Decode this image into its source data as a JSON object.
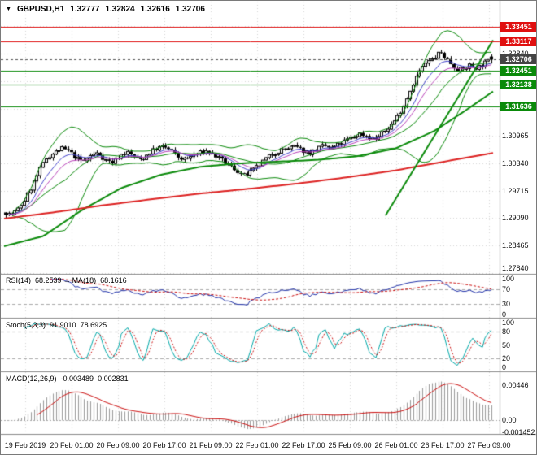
{
  "header": {
    "dropdown_icon": "▼",
    "symbol": "GBPUSD,H1",
    "open": "1.32777",
    "high": "1.32824",
    "low": "1.32616",
    "close": "1.32706"
  },
  "colors": {
    "background": "#ffffff",
    "grid": "#d6d6d6",
    "panel_border": "#8a8a8a",
    "candle_outline": "#000000",
    "candle_up_fill": "#ffffff",
    "candle_down_fill": "#000000",
    "bollinger": "#0a8a0a",
    "ema_fast": "#4444cc",
    "ema_medium": "#bb44bb",
    "slow_ma_green": "#0a8a0a",
    "slow_ma_red": "#dd2222",
    "trendline": "#0a8a0a",
    "resistance": "#e01010",
    "support": "#0a8a0a",
    "current_price_line": "#555555",
    "current_price_box": "#444444",
    "indicator_level": "#aaaaaa",
    "rsi_line": "#2233aa",
    "rsi_ma": "#cc1111",
    "stoch_main": "#00a8a8",
    "stoch_signal": "#cc1111",
    "macd_histogram": "#9a9a9a",
    "macd_signal": "#cc1111"
  },
  "chart_data": {
    "type": "candlestick",
    "title": "GBPUSD,H1",
    "symbol": "GBPUSD",
    "timeframe": "H1",
    "last_ohlc": {
      "open": 1.32777,
      "high": 1.32824,
      "low": 1.32616,
      "close": 1.32706
    },
    "price_range": {
      "min": 1.2782,
      "max": 1.3403
    },
    "candles_count": 156,
    "seed": 7,
    "close_path": [
      [
        0.0,
        1.2922
      ],
      [
        0.01,
        1.2916
      ],
      [
        0.025,
        1.2928
      ],
      [
        0.04,
        1.2952
      ],
      [
        0.055,
        1.2984
      ],
      [
        0.07,
        1.3018
      ],
      [
        0.085,
        1.3048
      ],
      [
        0.1,
        1.3058
      ],
      [
        0.115,
        1.3068
      ],
      [
        0.13,
        1.3062
      ],
      [
        0.145,
        1.3046
      ],
      [
        0.16,
        1.3038
      ],
      [
        0.175,
        1.3052
      ],
      [
        0.19,
        1.3058
      ],
      [
        0.205,
        1.3042
      ],
      [
        0.22,
        1.3036
      ],
      [
        0.235,
        1.3052
      ],
      [
        0.25,
        1.306
      ],
      [
        0.265,
        1.3048
      ],
      [
        0.28,
        1.3042
      ],
      [
        0.295,
        1.3058
      ],
      [
        0.31,
        1.3068
      ],
      [
        0.325,
        1.3072
      ],
      [
        0.34,
        1.3064
      ],
      [
        0.355,
        1.3048
      ],
      [
        0.37,
        1.3042
      ],
      [
        0.385,
        1.3052
      ],
      [
        0.4,
        1.3058
      ],
      [
        0.415,
        1.3062
      ],
      [
        0.43,
        1.3052
      ],
      [
        0.445,
        1.304
      ],
      [
        0.46,
        1.303
      ],
      [
        0.475,
        1.3018
      ],
      [
        0.49,
        1.3006
      ],
      [
        0.505,
        1.3014
      ],
      [
        0.52,
        1.3028
      ],
      [
        0.535,
        1.3044
      ],
      [
        0.55,
        1.3056
      ],
      [
        0.565,
        1.3064
      ],
      [
        0.58,
        1.3068
      ],
      [
        0.595,
        1.3072
      ],
      [
        0.61,
        1.3064
      ],
      [
        0.625,
        1.3058
      ],
      [
        0.64,
        1.3066
      ],
      [
        0.655,
        1.3074
      ],
      [
        0.67,
        1.3068
      ],
      [
        0.685,
        1.3076
      ],
      [
        0.7,
        1.3086
      ],
      [
        0.715,
        1.3094
      ],
      [
        0.73,
        1.3102
      ],
      [
        0.745,
        1.3096
      ],
      [
        0.76,
        1.3088
      ],
      [
        0.775,
        1.3102
      ],
      [
        0.79,
        1.3118
      ],
      [
        0.805,
        1.3138
      ],
      [
        0.82,
        1.3168
      ],
      [
        0.835,
        1.3208
      ],
      [
        0.85,
        1.3242
      ],
      [
        0.865,
        1.3262
      ],
      [
        0.88,
        1.3272
      ],
      [
        0.895,
        1.3288
      ],
      [
        0.91,
        1.327
      ],
      [
        0.925,
        1.3252
      ],
      [
        0.94,
        1.3246
      ],
      [
        0.955,
        1.3258
      ],
      [
        0.97,
        1.3252
      ],
      [
        0.985,
        1.3262
      ],
      [
        1.0,
        1.32706
      ]
    ],
    "levels": [
      {
        "value": 1.33451,
        "label": "1.33451",
        "type": "resistance"
      },
      {
        "value": 1.33117,
        "label": "1.33117",
        "type": "resistance"
      },
      {
        "value": 1.32451,
        "label": "1.32451",
        "type": "support"
      },
      {
        "value": 1.32138,
        "label": "1.32138",
        "type": "support"
      },
      {
        "value": 1.31636,
        "label": "1.31636",
        "type": "support"
      }
    ],
    "current_price": {
      "value": 1.32706,
      "label": "1.32706"
    },
    "y_axis_ticks": [
      {
        "label": "1.32840",
        "value": 1.3284
      },
      {
        "label": "1.30965",
        "value": 1.30965
      },
      {
        "label": "1.30340",
        "value": 1.3034
      },
      {
        "label": "1.29715",
        "value": 1.29715
      },
      {
        "label": "1.29090",
        "value": 1.2909
      },
      {
        "label": "1.28465",
        "value": 1.28465
      },
      {
        "label": "1.27840",
        "value": 1.2784
      }
    ],
    "grid_price_start": 1.2784,
    "grid_price_step": 0.00625,
    "x_labels": [
      "19 Feb 2019",
      "20 Feb 01:00",
      "20 Feb 09:00",
      "20 Feb 17:00",
      "21 Feb 09:00",
      "22 Feb 01:00",
      "22 Feb 17:00",
      "25 Feb 09:00",
      "26 Feb 01:00",
      "26 Feb 17:00",
      "27 Feb 09:00"
    ],
    "overlays": {
      "bollinger": {
        "period": 20,
        "deviation": 2
      },
      "ema_fast_period": 8,
      "ema_medium_period": 13,
      "slow_ma_green": [
        [
          0,
          1.2845
        ],
        [
          0.08,
          1.2868
        ],
        [
          0.16,
          1.2928
        ],
        [
          0.24,
          1.2978
        ],
        [
          0.32,
          1.3008
        ],
        [
          0.4,
          1.3026
        ],
        [
          0.48,
          1.3034
        ],
        [
          0.56,
          1.3038
        ],
        [
          0.64,
          1.3042
        ],
        [
          0.72,
          1.305
        ],
        [
          0.8,
          1.3068
        ],
        [
          0.88,
          1.3108
        ],
        [
          0.94,
          1.3152
        ],
        [
          1,
          1.3198
        ]
      ],
      "slow_ma_red": [
        [
          0,
          1.2908
        ],
        [
          0.1,
          1.2922
        ],
        [
          0.2,
          1.2938
        ],
        [
          0.3,
          1.2952
        ],
        [
          0.4,
          1.2965
        ],
        [
          0.5,
          1.2976
        ],
        [
          0.6,
          1.2988
        ],
        [
          0.7,
          1.3002
        ],
        [
          0.8,
          1.3018
        ],
        [
          0.9,
          1.3038
        ],
        [
          1,
          1.3058
        ]
      ],
      "trendline": [
        [
          0.78,
          1.2915
        ],
        [
          1.0,
          1.3315
        ]
      ]
    }
  },
  "rsi_panel": {
    "name": "RSI(14)",
    "value": "68.2539",
    "arrow": "→",
    "ma_name": "MA(18)",
    "ma_value": "68.1616",
    "period": 14,
    "ma_period": 18,
    "levels": [
      70,
      30
    ],
    "range": [
      0,
      100
    ],
    "axis": [
      {
        "label": "100",
        "value": 100
      },
      {
        "label": "70",
        "value": 70
      },
      {
        "label": "30",
        "value": 30
      },
      {
        "label": "0",
        "value": 0
      }
    ]
  },
  "stoch_panel": {
    "name": "Stoch(5,3,3)",
    "value": "91.9010",
    "signal_value": "78.6925",
    "k_period": 5,
    "d_period": 3,
    "slowing": 3,
    "levels": [
      80,
      20
    ],
    "range": [
      0,
      100
    ],
    "axis": [
      {
        "label": "100",
        "value": 100
      },
      {
        "label": "80",
        "value": 80
      },
      {
        "label": "50",
        "value": 50
      },
      {
        "label": "20",
        "value": 20
      },
      {
        "label": "0",
        "value": 0
      }
    ]
  },
  "macd_panel": {
    "name": "MACD(12,26,9)",
    "value": "-0.003489",
    "signal_value": "0.002831",
    "fast": 12,
    "slow": 26,
    "signal": 9,
    "range": [
      -0.0014,
      0.006
    ],
    "axis": [
      {
        "label": "0.00446",
        "value": 0.00446
      },
      {
        "label": "0.00",
        "value": 0
      },
      {
        "label": "-0.001452",
        "value": -0.001452
      }
    ]
  }
}
